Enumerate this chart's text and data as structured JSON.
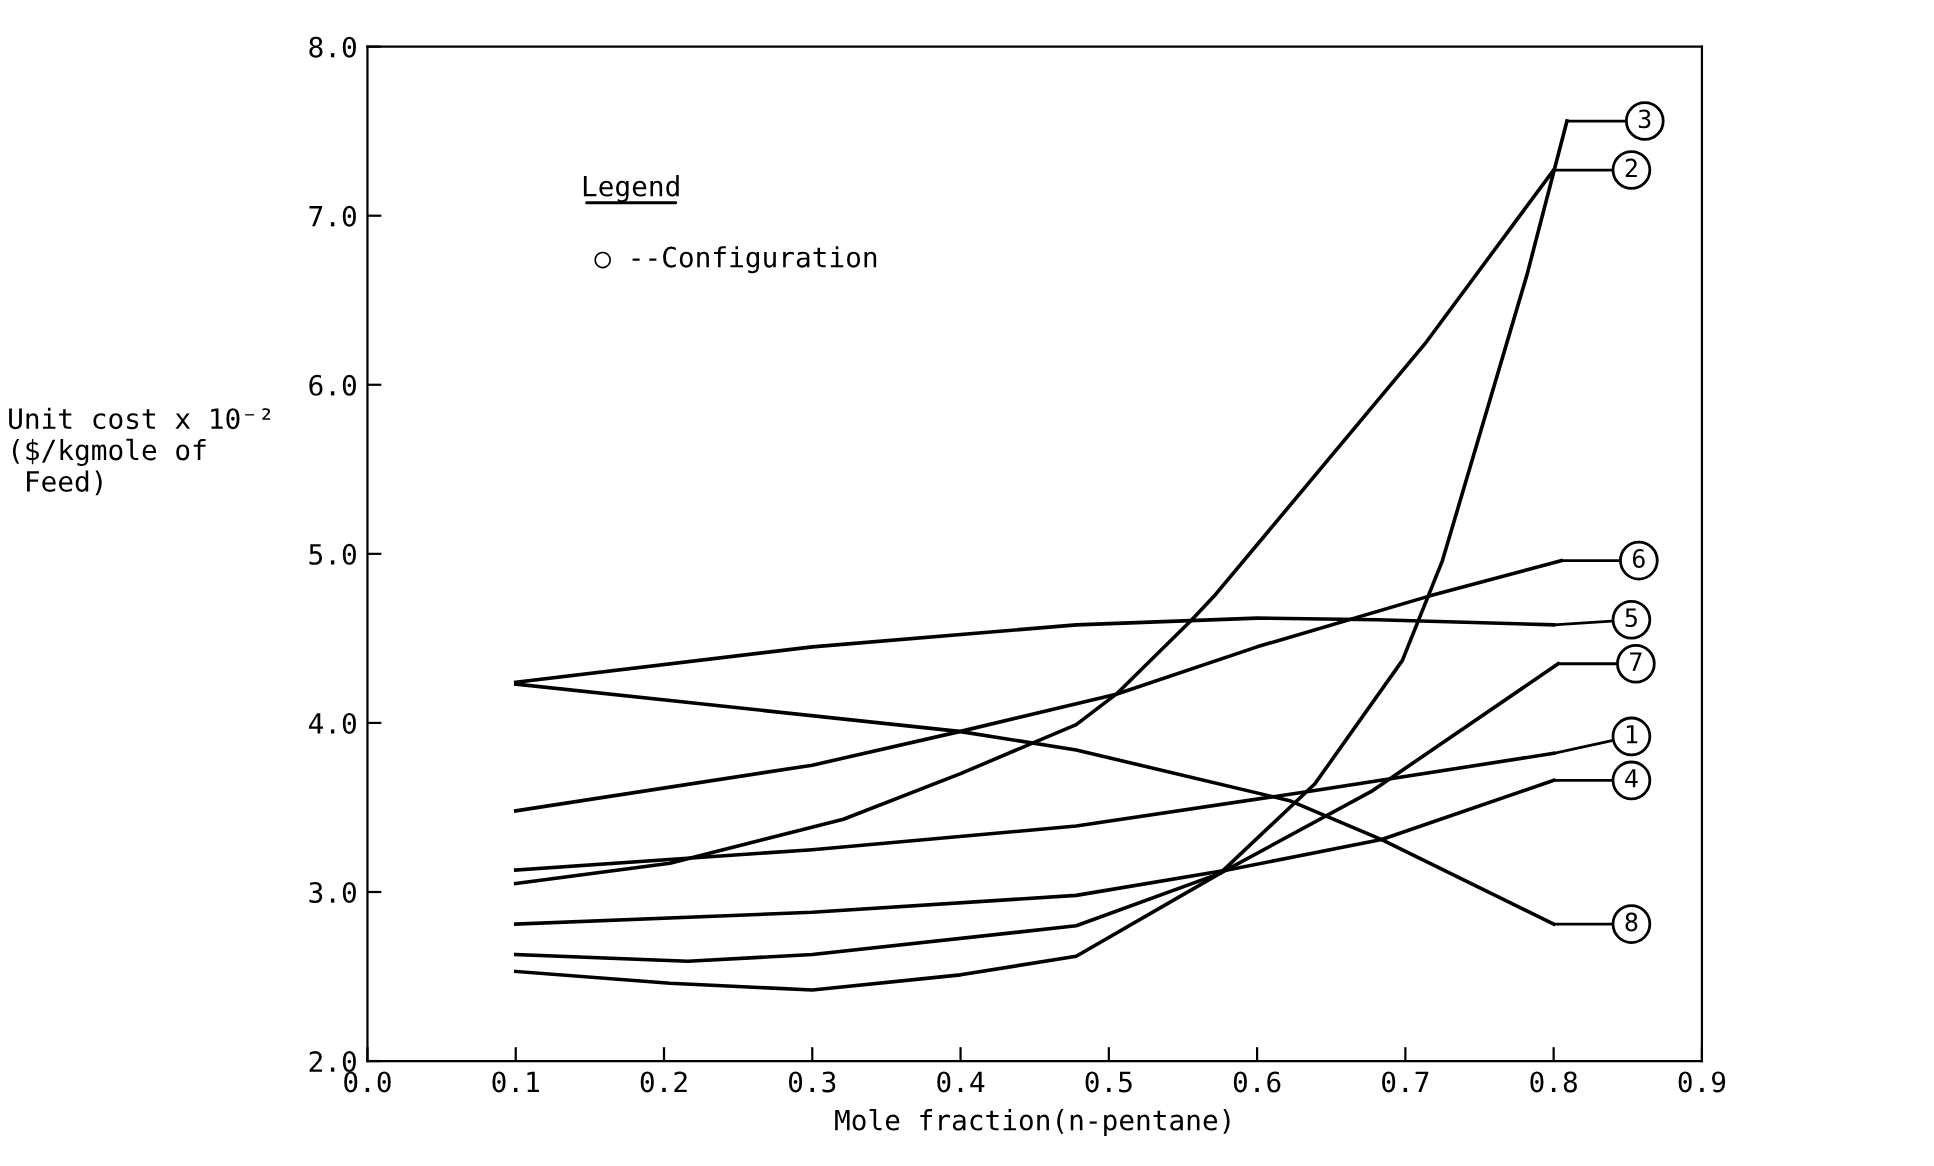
{
  "chart_data": {
    "type": "line",
    "xlabel": "Mole fraction(n-pentane)",
    "ylabel": "Unit cost x 10⁻²\n($/kgmole of\n Feed)",
    "annotations": [
      "Legend",
      "○ --Configuration"
    ],
    "xlim": [
      0.0,
      0.9
    ],
    "ylim": [
      2.0,
      8.0
    ],
    "xticks": [
      {
        "value": 0.0,
        "label": "0.0"
      },
      {
        "value": 0.1,
        "label": "0.1"
      },
      {
        "value": 0.2,
        "label": "0.2"
      },
      {
        "value": 0.3,
        "label": "0.3"
      },
      {
        "value": 0.4,
        "label": "0.4"
      },
      {
        "value": 0.5,
        "label": "0.5"
      },
      {
        "value": 0.6,
        "label": "0.6"
      },
      {
        "value": 0.7,
        "label": "0.7"
      },
      {
        "value": 0.8,
        "label": "0.8"
      },
      {
        "value": 0.9,
        "label": "0.9"
      }
    ],
    "yticks": [
      {
        "value": 2,
        "label": "2.0"
      },
      {
        "value": 3,
        "label": "3.0"
      },
      {
        "value": 4,
        "label": "4.0"
      },
      {
        "value": 5,
        "label": "5.0"
      },
      {
        "value": 6,
        "label": "6.0"
      },
      {
        "value": 7,
        "label": "7.0"
      },
      {
        "value": 8,
        "label": "8.0"
      }
    ],
    "grid": false,
    "legend": "right",
    "marker": "none",
    "line_style": "solid",
    "series": [
      {
        "name": "1",
        "color": "#000000",
        "x": [
          0.1,
          0.3,
          0.478,
          0.639,
          0.8
        ],
        "values": [
          3.13,
          3.25,
          3.39,
          3.6,
          3.82
        ]
      },
      {
        "name": "2",
        "color": "#000000",
        "x": [
          0.1,
          0.204,
          0.321,
          0.4,
          0.478,
          0.505,
          0.556,
          0.572,
          0.713,
          0.8
        ],
        "values": [
          3.05,
          3.17,
          3.43,
          3.7,
          3.99,
          4.17,
          4.61,
          4.76,
          6.24,
          7.27
        ]
      },
      {
        "name": "3",
        "color": "#000000",
        "x": [
          0.1,
          0.204,
          0.3,
          0.4,
          0.478,
          0.575,
          0.639,
          0.698,
          0.725,
          0.782,
          0.809
        ],
        "values": [
          2.53,
          2.46,
          2.42,
          2.51,
          2.62,
          3.11,
          3.64,
          4.37,
          4.96,
          6.65,
          7.56
        ]
      },
      {
        "name": "4",
        "color": "#000000",
        "x": [
          0.1,
          0.3,
          0.478,
          0.58,
          0.684,
          0.8
        ],
        "values": [
          2.81,
          2.88,
          2.98,
          3.13,
          3.31,
          3.66
        ]
      },
      {
        "name": "5",
        "color": "#000000",
        "x": [
          0.1,
          0.3,
          0.478,
          0.6,
          0.681,
          0.8
        ],
        "values": [
          4.24,
          4.45,
          4.58,
          4.62,
          4.61,
          4.58
        ]
      },
      {
        "name": "6",
        "color": "#000000",
        "x": [
          0.1,
          0.3,
          0.4,
          0.505,
          0.6,
          0.716,
          0.805
        ],
        "values": [
          3.48,
          3.75,
          3.95,
          4.17,
          4.45,
          4.75,
          4.96
        ]
      },
      {
        "name": "7",
        "color": "#000000",
        "x": [
          0.1,
          0.216,
          0.3,
          0.478,
          0.575,
          0.678,
          0.803
        ],
        "values": [
          2.63,
          2.59,
          2.63,
          2.8,
          3.11,
          3.6,
          4.35
        ]
      },
      {
        "name": "8",
        "color": "#000000",
        "x": [
          0.1,
          0.399,
          0.478,
          0.622,
          0.684,
          0.8
        ],
        "values": [
          4.23,
          3.95,
          3.84,
          3.54,
          3.31,
          2.81
        ]
      }
    ]
  }
}
